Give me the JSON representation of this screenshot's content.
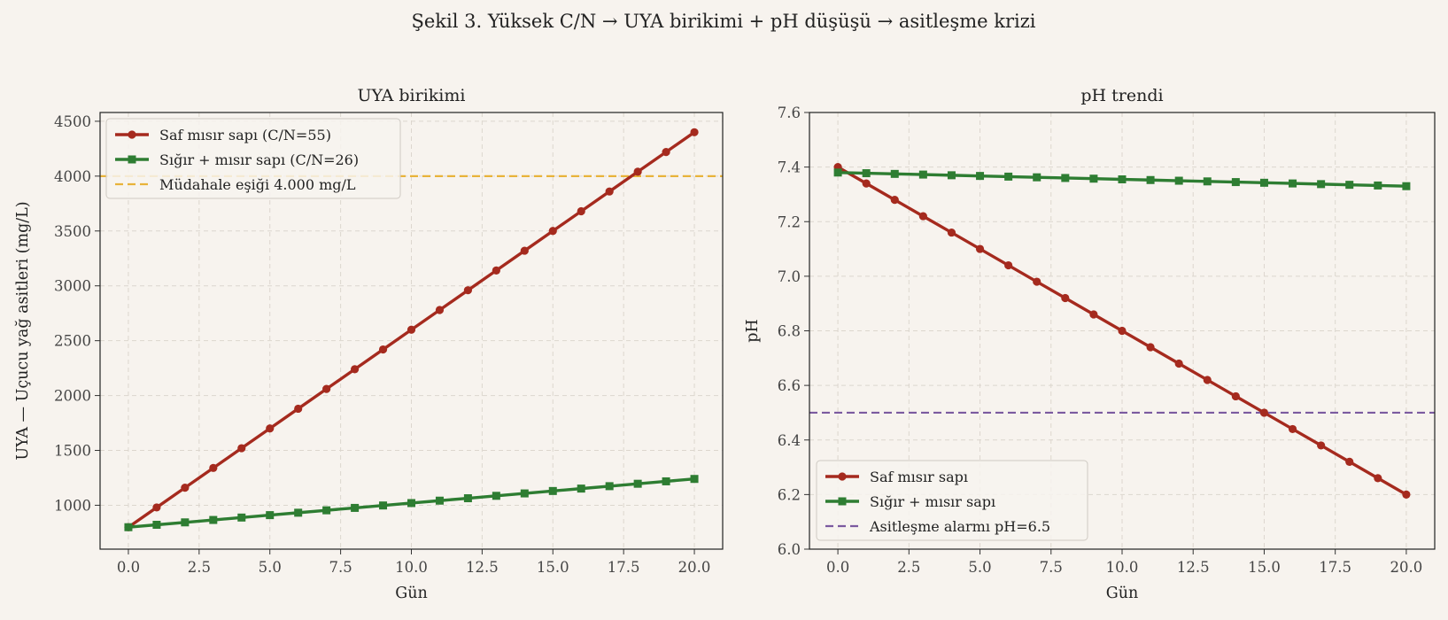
{
  "figure": {
    "suptitle": "Şekil 3. Yüksek C/N → UYA birikimi + pH düşüşü → asitleşme krizi"
  },
  "colors": {
    "background": "#f7f3ee",
    "red_series": "#a52a1e",
    "green_series": "#2e7d32",
    "threshold_orange": "#e8b33a",
    "alarm_purple": "#7b5aa0",
    "grid": "#dcd6ce"
  },
  "chart_data": [
    {
      "type": "line",
      "title": "UYA birikimi",
      "xlabel": "Gün",
      "ylabel": "UYA — Uçucu yağ asitleri (mg/L)",
      "xlim": [
        -1,
        21
      ],
      "ylim": [
        600,
        4580
      ],
      "xticks": [
        "0.0",
        "2.5",
        "5.0",
        "7.5",
        "10.0",
        "12.5",
        "15.0",
        "17.5",
        "20.0"
      ],
      "yticks": [
        "1000",
        "1500",
        "2000",
        "2500",
        "3000",
        "3500",
        "4000",
        "4500"
      ],
      "grid": true,
      "legend_position": "upper-left",
      "x": [
        0,
        1,
        2,
        3,
        4,
        5,
        6,
        7,
        8,
        9,
        10,
        11,
        12,
        13,
        14,
        15,
        16,
        17,
        18,
        19,
        20
      ],
      "series": [
        {
          "name": "Saf mısır sapı (C/N=55)",
          "marker": "circle",
          "color": "#a52a1e",
          "values": [
            800,
            980,
            1160,
            1340,
            1520,
            1700,
            1880,
            2060,
            2240,
            2420,
            2600,
            2780,
            2960,
            3140,
            3320,
            3500,
            3680,
            3860,
            4040,
            4220,
            4400
          ]
        },
        {
          "name": "Sığır + mısır sapı (C/N=26)",
          "marker": "square",
          "color": "#2e7d32",
          "values": [
            800,
            822,
            844,
            866,
            888,
            910,
            932,
            954,
            976,
            998,
            1020,
            1042,
            1064,
            1086,
            1108,
            1130,
            1152,
            1174,
            1196,
            1218,
            1240
          ]
        }
      ],
      "reference_lines": [
        {
          "name": "Müdahale eşiği 4.000 mg/L",
          "y": 4000,
          "color": "#e8b33a",
          "style": "dashed"
        }
      ]
    },
    {
      "type": "line",
      "title": "pH trendi",
      "xlabel": "Gün",
      "ylabel": "pH",
      "xlim": [
        -1,
        21
      ],
      "ylim": [
        6.0,
        7.6
      ],
      "xticks": [
        "0.0",
        "2.5",
        "5.0",
        "7.5",
        "10.0",
        "12.5",
        "15.0",
        "17.5",
        "20.0"
      ],
      "yticks": [
        "6.0",
        "6.2",
        "6.4",
        "6.6",
        "6.8",
        "7.0",
        "7.2",
        "7.4",
        "7.6"
      ],
      "grid": true,
      "legend_position": "lower-left",
      "x": [
        0,
        1,
        2,
        3,
        4,
        5,
        6,
        7,
        8,
        9,
        10,
        11,
        12,
        13,
        14,
        15,
        16,
        17,
        18,
        19,
        20
      ],
      "series": [
        {
          "name": "Saf mısır sapı",
          "marker": "circle",
          "color": "#a52a1e",
          "values": [
            7.4,
            7.34,
            7.28,
            7.22,
            7.16,
            7.1,
            7.04,
            6.98,
            6.92,
            6.86,
            6.8,
            6.74,
            6.68,
            6.62,
            6.56,
            6.5,
            6.44,
            6.38,
            6.32,
            6.26,
            6.2
          ]
        },
        {
          "name": "Sığır + mısır sapı",
          "marker": "square",
          "color": "#2e7d32",
          "values": [
            7.38,
            7.3775,
            7.375,
            7.3725,
            7.37,
            7.3675,
            7.365,
            7.3625,
            7.36,
            7.3575,
            7.355,
            7.3525,
            7.35,
            7.3475,
            7.345,
            7.3425,
            7.34,
            7.3375,
            7.335,
            7.3325,
            7.33
          ]
        }
      ],
      "reference_lines": [
        {
          "name": "Asitleşme alarmı pH=6.5",
          "y": 6.5,
          "color": "#7b5aa0",
          "style": "dashed"
        }
      ]
    }
  ]
}
